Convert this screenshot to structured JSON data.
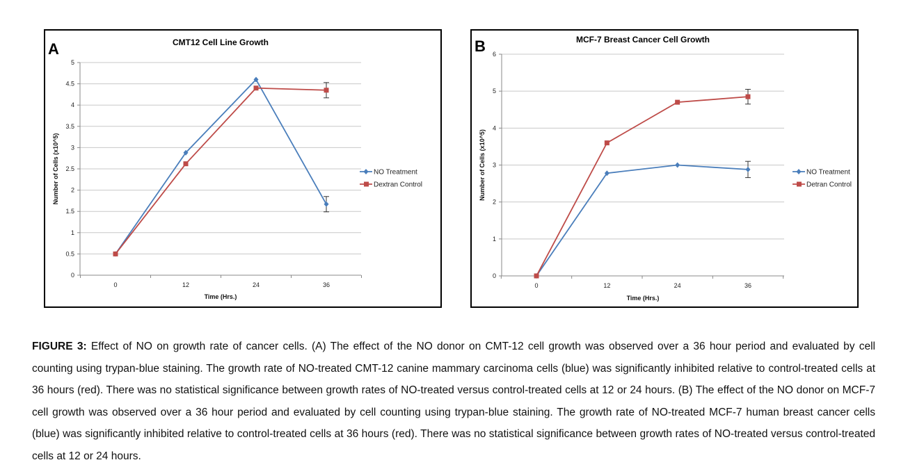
{
  "chart_data": [
    {
      "type": "line",
      "panel_label": "A",
      "title": "CMT12 Cell Line Growth",
      "xlabel": "Time (Hrs.)",
      "ylabel": "Number of Cells (x10^5)",
      "x": [
        0,
        12,
        24,
        36
      ],
      "x_tick_labels": [
        "0",
        "12",
        "24",
        "36"
      ],
      "ylim": [
        0,
        5
      ],
      "y_tick_labels": [
        "0",
        "0.5",
        "1",
        "1.5",
        "2",
        "2.5",
        "3",
        "3.5",
        "4",
        "4.5",
        "5"
      ],
      "grid": true,
      "legend_position": "right",
      "series": [
        {
          "name": "NO Treatment",
          "color": "#4a7ebb",
          "marker": "diamond",
          "values": [
            0.5,
            2.88,
            4.6,
            1.67
          ],
          "error": [
            0,
            0,
            0,
            0.18
          ]
        },
        {
          "name": "Dextran Control",
          "color": "#be4b48",
          "marker": "square",
          "values": [
            0.5,
            2.62,
            4.4,
            4.35
          ],
          "error": [
            0,
            0,
            0,
            0.18
          ]
        }
      ]
    },
    {
      "type": "line",
      "panel_label": "B",
      "title": "MCF-7 Breast Cancer Cell Growth",
      "xlabel": "Time (Hrs.)",
      "ylabel": "Number of Cells (x10^5)",
      "x": [
        0,
        12,
        24,
        36
      ],
      "x_tick_labels": [
        "0",
        "12",
        "24",
        "36"
      ],
      "ylim": [
        0,
        6
      ],
      "y_tick_labels": [
        "0",
        "1",
        "2",
        "3",
        "4",
        "5",
        "6"
      ],
      "grid": true,
      "legend_position": "right",
      "series": [
        {
          "name": "NO Treatment",
          "color": "#4a7ebb",
          "marker": "diamond",
          "values": [
            0,
            2.78,
            3.0,
            2.88
          ],
          "error": [
            0,
            0,
            0,
            0.22
          ]
        },
        {
          "name": "Detran Control",
          "color": "#be4b48",
          "marker": "square",
          "values": [
            0,
            3.6,
            4.7,
            4.85
          ],
          "error": [
            0,
            0,
            0,
            0.2
          ]
        }
      ]
    }
  ],
  "caption": {
    "label": "FIGURE 3:",
    "text": "Effect of NO on growth rate of cancer cells. (A) The effect of the NO donor on CMT-12 cell growth was observed over a 36 hour period and evaluated by cell counting using trypan-blue staining. The growth rate of NO-treated CMT-12 canine mammary carcinoma cells (blue) was significantly inhibited relative to control-treated cells at 36 hours (red). There was no statistical significance between growth rates of NO-treated versus control-treated cells at 12 or 24 hours. (B) The effect of the NO donor on MCF-7 cell growth was observed over a 36 hour period and evaluated by cell counting using trypan-blue staining. The growth rate of NO-treated MCF-7 human breast cancer cells (blue) was significantly inhibited relative to control-treated cells at 36 hours (red). There was no statistical significance between growth rates of NO-treated versus control-treated cells at 12 or 24 hours."
  }
}
